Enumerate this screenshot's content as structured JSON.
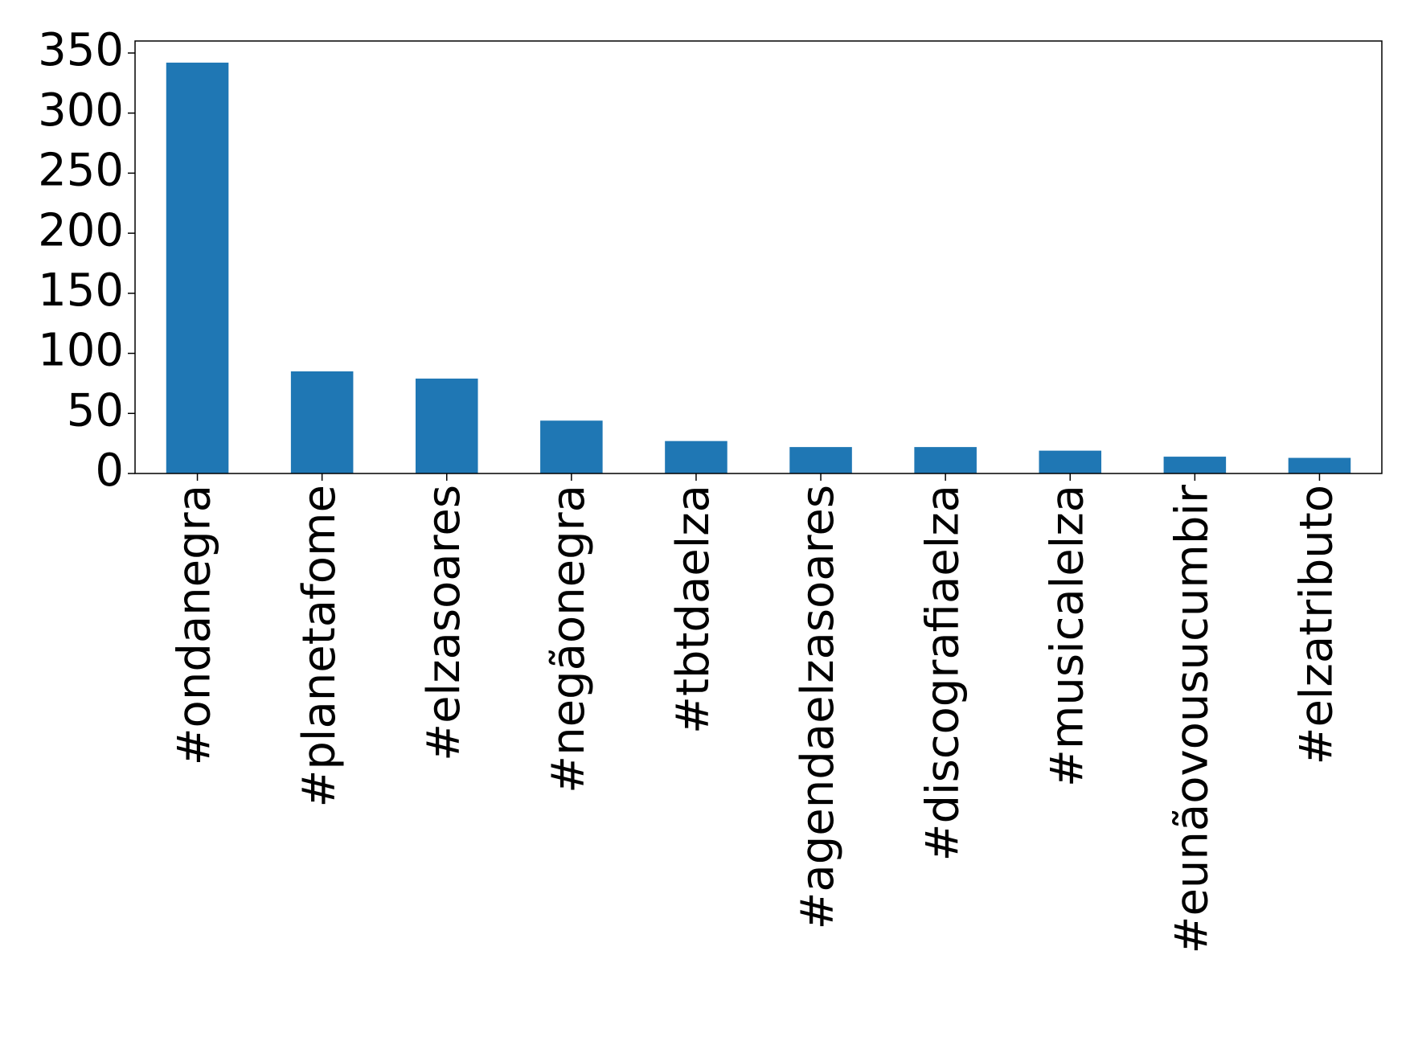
{
  "chart_data": {
    "type": "bar",
    "categories": [
      "#ondanegra",
      "#planetafome",
      "#elzasoares",
      "#negãonegra",
      "#tbtdaelza",
      "#agendaelzasoares",
      "#discografiaelza",
      "#musicalelza",
      "#eunãovousucumbir",
      "#elzatributo"
    ],
    "values": [
      342,
      85,
      79,
      44,
      27,
      22,
      22,
      19,
      14,
      13
    ],
    "color": "#1f77b4",
    "ylim": [
      0,
      360
    ],
    "yticks": [
      0,
      50,
      100,
      150,
      200,
      250,
      300,
      350
    ],
    "grid": false
  }
}
